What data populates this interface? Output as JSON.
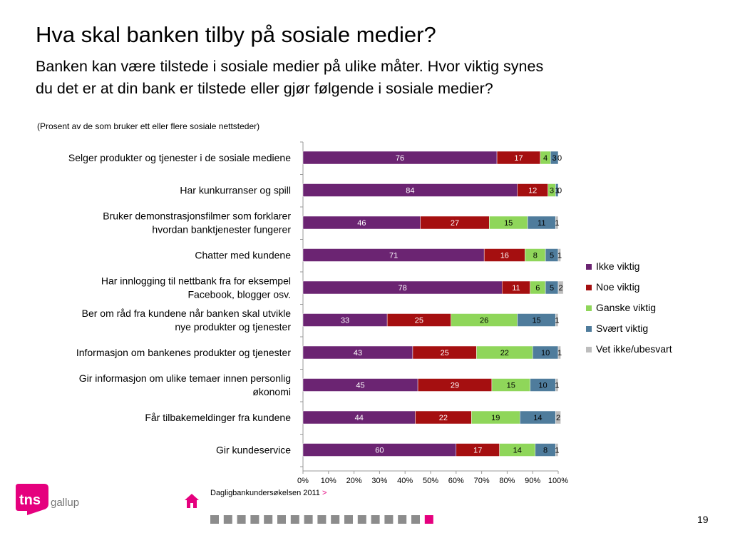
{
  "slide": {
    "title": "Hva skal banken tilby på sosiale medier?",
    "subtitle": "Banken kan være tilstede i sosiale medier på ulike måter. Hvor viktig synes du det er at din bank er tilstede eller gjør følgende i sosiale medier?",
    "note": "(Prosent av de som bruker ett eller flere sosiale nettsteder)",
    "source": "Dagligbankundersøkelsen 2011",
    "source_arrow": ">",
    "page_number": "19",
    "logo_text": "tns",
    "logo_sub": "gallup",
    "progress": {
      "total": 17,
      "active_index": 16
    }
  },
  "colors": {
    "ikke": "#6b2472",
    "noe": "#a50f10",
    "ganske": "#8fd65a",
    "svaert": "#4f7c9c",
    "vet": "#bdbdbd",
    "brand": "#e5007e",
    "progress_gray": "#8c8c8c"
  },
  "chart_data": {
    "type": "bar",
    "orientation": "horizontal",
    "stacked": true,
    "categories": [
      [
        "Selger produkter og tjenester i de sosiale mediene"
      ],
      [
        "Har kunkurranser og spill"
      ],
      [
        "Bruker demonstrasjonsfilmer som forklarer",
        "hvordan banktjenester fungerer"
      ],
      [
        "Chatter med kundene"
      ],
      [
        "Har innlogging til nettbank fra for eksempel",
        "Facebook, blogger osv."
      ],
      [
        "Ber om råd fra kundene når banken skal utvikle",
        "nye produkter og tjenester"
      ],
      [
        "Informasjon om bankenes produkter og tjenester"
      ],
      [
        "Gir informasjon om ulike temaer innen personlig",
        "økonomi"
      ],
      [
        "Får tilbakemeldinger fra kundene"
      ],
      [
        "Gir kundeservice"
      ]
    ],
    "series": [
      {
        "name": "Ikke viktig",
        "color_key": "ikke",
        "values": [
          76,
          84,
          46,
          71,
          78,
          33,
          43,
          45,
          44,
          60
        ]
      },
      {
        "name": "Noe viktig",
        "color_key": "noe",
        "values": [
          17,
          12,
          27,
          16,
          11,
          25,
          25,
          29,
          22,
          17
        ]
      },
      {
        "name": "Ganske viktig",
        "color_key": "ganske",
        "values": [
          4,
          3,
          15,
          8,
          6,
          26,
          22,
          15,
          19,
          14
        ]
      },
      {
        "name": "Svært viktig",
        "color_key": "svaert",
        "values": [
          3,
          1,
          11,
          5,
          5,
          15,
          10,
          10,
          14,
          8
        ]
      },
      {
        "name": "Vet ikke/ubesvart",
        "color_key": "vet",
        "values": [
          0,
          0,
          1,
          1,
          2,
          1,
          1,
          1,
          2,
          1
        ]
      }
    ],
    "value_labels_override": [
      [
        "76",
        "17",
        "4",
        "3",
        "0"
      ],
      [
        "84",
        "12",
        "3",
        "1",
        "0"
      ],
      [
        "46",
        "27",
        "15",
        "11",
        "1"
      ],
      [
        "71",
        "16",
        "8",
        "5",
        "1"
      ],
      [
        "78",
        "11",
        "6",
        "5",
        "2"
      ],
      [
        "33",
        "25",
        "26",
        "15",
        "1"
      ],
      [
        "43",
        "25",
        "22",
        "10",
        "1"
      ],
      [
        "45",
        "29",
        "15",
        "10",
        "1"
      ],
      [
        "44",
        "22",
        "19",
        "14",
        "2"
      ],
      [
        "60",
        "17",
        "14",
        "8",
        "1"
      ]
    ],
    "xlim": [
      0,
      100
    ],
    "xticks": [
      "0%",
      "10%",
      "20%",
      "30%",
      "40%",
      "50%",
      "60%",
      "70%",
      "80%",
      "90%",
      "100%"
    ],
    "legend_position": "right",
    "grid": false
  }
}
